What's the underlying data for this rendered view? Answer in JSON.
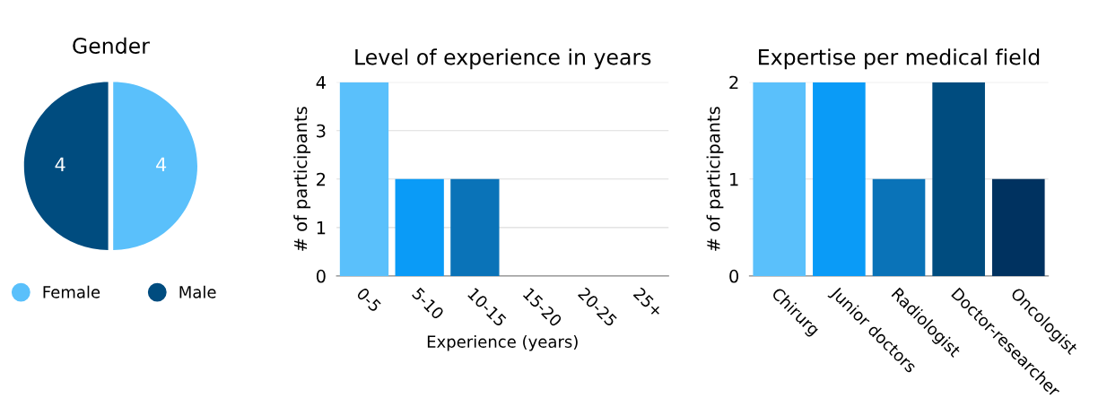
{
  "chart_data": [
    {
      "type": "pie",
      "title": "Gender",
      "categories": [
        "Female",
        "Male"
      ],
      "values": [
        4,
        4
      ],
      "colors": [
        "#5ac0fb",
        "#004c7f"
      ],
      "data_labels": true,
      "legend": "bottom"
    },
    {
      "type": "bar",
      "title": "Level of experience in years",
      "xlabel": "Experience (years)",
      "ylabel": "# of participants",
      "categories": [
        "0-5",
        "5-10",
        "10-15",
        "15-20",
        "20-25",
        "25+"
      ],
      "values": [
        4,
        2,
        2,
        0,
        0,
        0
      ],
      "colors": [
        "#5ac0fb",
        "#0a9bf7",
        "#0a73b8",
        "#004c7f",
        "#003260",
        "#5ac0fb"
      ],
      "ylim": [
        0,
        4
      ],
      "yticks": [
        0,
        1,
        2,
        3,
        4
      ],
      "grid": "y"
    },
    {
      "type": "bar",
      "title": "Expertise per medical field",
      "ylabel": "# of participants",
      "categories": [
        "Chirurg",
        "Junior doctors",
        "Radiologist",
        "Doctor-researcher",
        "Oncologist"
      ],
      "values": [
        2,
        2,
        1,
        2,
        1
      ],
      "colors": [
        "#5ac0fb",
        "#0a9bf7",
        "#0a73b8",
        "#004c7f",
        "#003260"
      ],
      "ylim": [
        0,
        2
      ],
      "yticks": [
        0,
        1,
        2
      ],
      "grid": "y"
    }
  ]
}
